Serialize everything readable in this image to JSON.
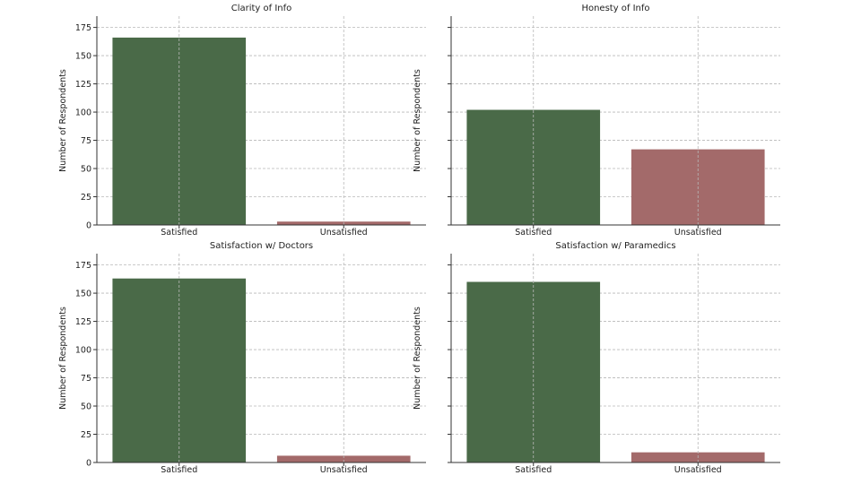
{
  "chart_data": [
    {
      "type": "bar",
      "title": "Clarity of Info",
      "categories": [
        "Satisfied",
        "Unsatisfied"
      ],
      "values": [
        166,
        3
      ],
      "colors": [
        "#4a6a48",
        "#a36a6a"
      ],
      "xlabel": "",
      "ylabel": "Number of Respondents",
      "ylim": [
        0,
        185
      ],
      "yticks": [
        0,
        25,
        50,
        75,
        100,
        125,
        150,
        175
      ],
      "show_yticks": true,
      "grid": true
    },
    {
      "type": "bar",
      "title": "Honesty of Info",
      "categories": [
        "Satisfied",
        "Unsatisfied"
      ],
      "values": [
        102,
        67
      ],
      "colors": [
        "#4a6a48",
        "#a36a6a"
      ],
      "xlabel": "",
      "ylabel": "Number of Respondents",
      "ylim": [
        0,
        185
      ],
      "yticks": [
        0,
        25,
        50,
        75,
        100,
        125,
        150,
        175
      ],
      "show_yticks": false,
      "grid": true
    },
    {
      "type": "bar",
      "title": "Satisfaction w/ Doctors",
      "categories": [
        "Satisfied",
        "Unsatisfied"
      ],
      "values": [
        163,
        6
      ],
      "colors": [
        "#4a6a48",
        "#a36a6a"
      ],
      "xlabel": "",
      "ylabel": "Number of Respondents",
      "ylim": [
        0,
        185
      ],
      "yticks": [
        0,
        25,
        50,
        75,
        100,
        125,
        150,
        175
      ],
      "show_yticks": true,
      "grid": true
    },
    {
      "type": "bar",
      "title": "Satisfaction w/ Paramedics",
      "categories": [
        "Satisfied",
        "Unsatisfied"
      ],
      "values": [
        160,
        9
      ],
      "colors": [
        "#4a6a48",
        "#a36a6a"
      ],
      "xlabel": "",
      "ylabel": "Number of Respondents",
      "ylim": [
        0,
        185
      ],
      "yticks": [
        0,
        25,
        50,
        75,
        100,
        125,
        150,
        175
      ],
      "show_yticks": false,
      "grid": true
    }
  ]
}
